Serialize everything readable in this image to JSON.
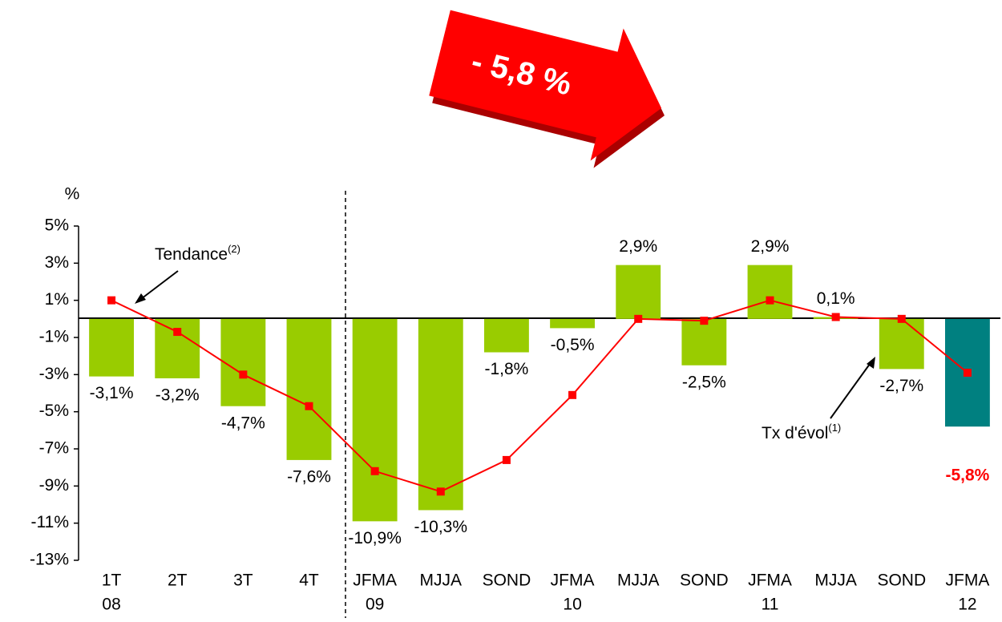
{
  "chart_data": {
    "type": "bar",
    "headline": "- 5,8 %",
    "y_label": "%",
    "categories": [
      [
        "1T",
        "08"
      ],
      [
        "2T"
      ],
      [
        "3T"
      ],
      [
        "4T"
      ],
      [
        "JFMA",
        "09"
      ],
      [
        "MJJA"
      ],
      [
        "SOND"
      ],
      [
        "JFMA",
        "10"
      ],
      [
        "MJJA"
      ],
      [
        "SOND"
      ],
      [
        "JFMA",
        "11"
      ],
      [
        "MJJA"
      ],
      [
        "SOND"
      ],
      [
        "JFMA",
        "12"
      ]
    ],
    "series": [
      {
        "type": "bar",
        "color": "#99cc00",
        "highlight_color": "#008080",
        "highlight_label_color": "#ff0000",
        "values": [
          -3.1,
          -3.2,
          -4.7,
          -7.6,
          -10.9,
          -10.3,
          -1.8,
          -0.5,
          2.9,
          -2.5,
          2.9,
          0.1,
          -2.7,
          -5.8
        ],
        "value_labels": [
          "-3,1%",
          "-3,2%",
          "-4,7%",
          "-7,6%",
          "-10,9%",
          "-10,3%",
          "-1,8%",
          "-0,5%",
          "2,9%",
          "-2,5%",
          "2,9%",
          "0,1%",
          "-2,7%",
          "-5,8%"
        ]
      },
      {
        "type": "line",
        "color": "#ff0000",
        "values": [
          1.0,
          -0.7,
          -3.0,
          -4.7,
          -8.2,
          -9.3,
          -7.6,
          -4.1,
          0.0,
          -0.1,
          1.0,
          0.1,
          0.0,
          -2.9
        ]
      }
    ],
    "annotations": [
      {
        "text": "Tendance",
        "sup": "(2)"
      },
      {
        "text": "Tx d'évol",
        "sup": "(1)"
      }
    ],
    "ylim": [
      -13,
      5
    ],
    "yticks": [
      {
        "value": 5,
        "label": "5%"
      },
      {
        "value": 3,
        "label": "3%"
      },
      {
        "value": 1,
        "label": "1%"
      },
      {
        "value": -1,
        "label": "-1%"
      },
      {
        "value": -3,
        "label": "-3%"
      },
      {
        "value": -5,
        "label": "-5%"
      },
      {
        "value": -7,
        "label": "-7%"
      },
      {
        "value": -9,
        "label": "-9%"
      },
      {
        "value": -11,
        "label": "-11%"
      },
      {
        "value": -13,
        "label": "-13%"
      }
    ]
  }
}
